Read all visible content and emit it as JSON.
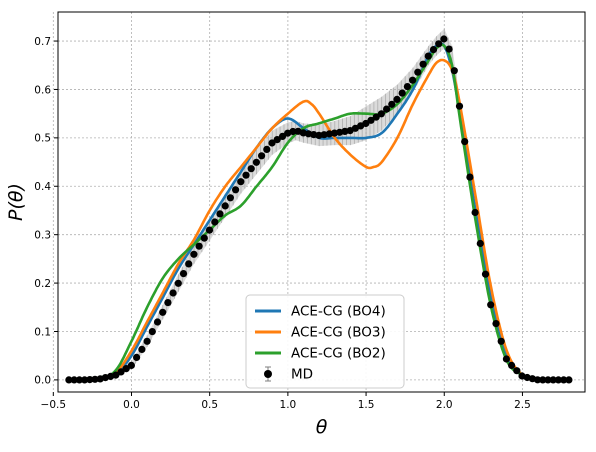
{
  "chart_data": {
    "type": "line",
    "xlabel": "θ",
    "ylabel": "P(θ)",
    "xlim": [
      -0.47,
      2.9
    ],
    "ylim": [
      -0.025,
      0.76
    ],
    "x_ticks": [
      -0.5,
      0.0,
      0.5,
      1.0,
      1.5,
      2.0,
      2.5
    ],
    "x_tick_labels": [
      "−0.5",
      "0.0",
      "0.5",
      "1.0",
      "1.5",
      "2.0",
      "2.5"
    ],
    "y_ticks": [
      0.0,
      0.1,
      0.2,
      0.3,
      0.4,
      0.5,
      0.6,
      0.7
    ],
    "y_tick_labels": [
      "0.0",
      "0.1",
      "0.2",
      "0.3",
      "0.4",
      "0.5",
      "0.6",
      "0.7"
    ],
    "grid": true,
    "legend_position": "bottom-center",
    "series": [
      {
        "name": "ACE-CG (BO4)",
        "color": "#1f77b4",
        "x": [
          -0.4,
          -0.2,
          -0.1,
          0.0,
          0.1,
          0.2,
          0.3,
          0.4,
          0.5,
          0.6,
          0.7,
          0.8,
          0.9,
          1.0,
          1.1,
          1.2,
          1.3,
          1.4,
          1.5,
          1.6,
          1.7,
          1.8,
          1.9,
          1.95,
          2.0,
          2.05,
          2.1,
          2.2,
          2.3,
          2.4,
          2.5,
          2.6,
          2.8
        ],
        "y": [
          0.0,
          0.003,
          0.012,
          0.05,
          0.11,
          0.17,
          0.23,
          0.28,
          0.33,
          0.38,
          0.43,
          0.48,
          0.52,
          0.54,
          0.52,
          0.5,
          0.5,
          0.5,
          0.5,
          0.51,
          0.55,
          0.6,
          0.67,
          0.69,
          0.69,
          0.64,
          0.55,
          0.35,
          0.17,
          0.05,
          0.01,
          0.0,
          0.0
        ]
      },
      {
        "name": "ACE-CG (BO3)",
        "color": "#ff7f0e",
        "x": [
          -0.4,
          -0.2,
          -0.1,
          0.0,
          0.1,
          0.2,
          0.3,
          0.4,
          0.5,
          0.6,
          0.7,
          0.8,
          0.9,
          1.0,
          1.1,
          1.15,
          1.2,
          1.3,
          1.4,
          1.5,
          1.55,
          1.6,
          1.7,
          1.8,
          1.9,
          1.95,
          2.0,
          2.05,
          2.1,
          2.2,
          2.3,
          2.4,
          2.5,
          2.6,
          2.8
        ],
        "y": [
          0.0,
          0.004,
          0.015,
          0.06,
          0.12,
          0.18,
          0.24,
          0.29,
          0.35,
          0.4,
          0.44,
          0.48,
          0.52,
          0.55,
          0.575,
          0.57,
          0.55,
          0.5,
          0.465,
          0.44,
          0.44,
          0.45,
          0.5,
          0.57,
          0.63,
          0.655,
          0.66,
          0.64,
          0.57,
          0.38,
          0.19,
          0.06,
          0.01,
          0.0,
          0.0
        ]
      },
      {
        "name": "ACE-CG (BO2)",
        "color": "#2ca02c",
        "x": [
          -0.4,
          -0.2,
          -0.1,
          0.0,
          0.1,
          0.2,
          0.3,
          0.4,
          0.5,
          0.6,
          0.7,
          0.8,
          0.9,
          1.0,
          1.1,
          1.2,
          1.3,
          1.4,
          1.5,
          1.6,
          1.7,
          1.8,
          1.9,
          1.95,
          2.0,
          2.05,
          2.1,
          2.2,
          2.3,
          2.4,
          2.5,
          2.6,
          2.8
        ],
        "y": [
          0.0,
          0.005,
          0.02,
          0.08,
          0.15,
          0.21,
          0.25,
          0.28,
          0.31,
          0.34,
          0.36,
          0.4,
          0.44,
          0.49,
          0.52,
          0.53,
          0.54,
          0.55,
          0.55,
          0.55,
          0.57,
          0.61,
          0.66,
          0.685,
          0.69,
          0.65,
          0.54,
          0.33,
          0.15,
          0.04,
          0.01,
          0.0,
          0.0
        ]
      }
    ],
    "md": {
      "name": "MD",
      "color": "#000000",
      "x": [
        -0.4,
        -0.3,
        -0.2,
        -0.1,
        0.0,
        0.1,
        0.2,
        0.3,
        0.4,
        0.5,
        0.6,
        0.7,
        0.8,
        0.9,
        1.0,
        1.05,
        1.1,
        1.2,
        1.3,
        1.4,
        1.5,
        1.6,
        1.7,
        1.8,
        1.9,
        1.95,
        2.0,
        2.05,
        2.1,
        2.2,
        2.3,
        2.4,
        2.5,
        2.6,
        2.8
      ],
      "y": [
        0.0,
        0.0,
        0.002,
        0.01,
        0.03,
        0.08,
        0.14,
        0.2,
        0.26,
        0.31,
        0.36,
        0.41,
        0.45,
        0.49,
        0.51,
        0.515,
        0.51,
        0.505,
        0.51,
        0.515,
        0.53,
        0.55,
        0.58,
        0.62,
        0.67,
        0.69,
        0.705,
        0.67,
        0.56,
        0.34,
        0.15,
        0.04,
        0.007,
        0.0,
        0.0
      ],
      "error_color": "#b0b0b0",
      "error_band": [
        0.002,
        0.002,
        0.003,
        0.005,
        0.008,
        0.012,
        0.015,
        0.018,
        0.02,
        0.022,
        0.024,
        0.025,
        0.025,
        0.025,
        0.022,
        0.02,
        0.02,
        0.022,
        0.025,
        0.03,
        0.035,
        0.035,
        0.03,
        0.025,
        0.02,
        0.02,
        0.02,
        0.02,
        0.02,
        0.015,
        0.01,
        0.006,
        0.003,
        0.002,
        0.002
      ]
    }
  }
}
